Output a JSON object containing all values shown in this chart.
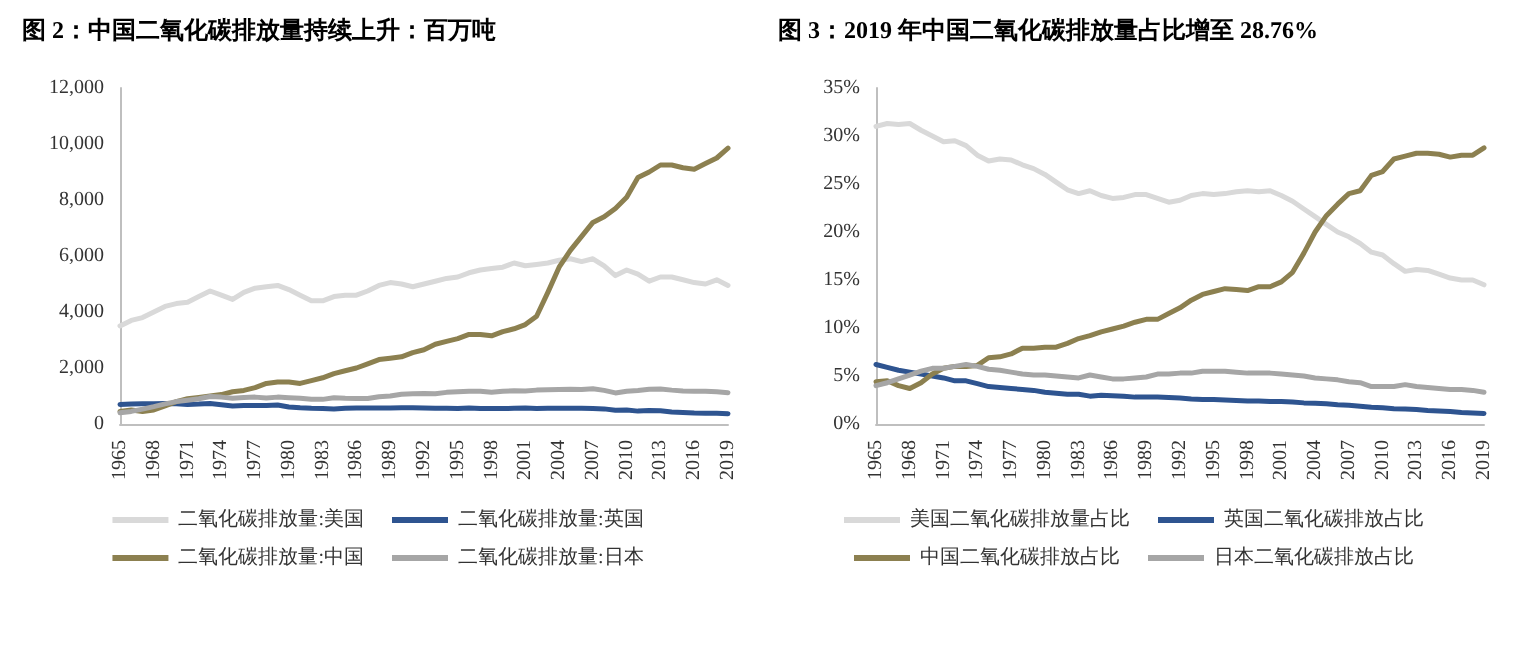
{
  "chart_data": [
    {
      "type": "line",
      "title": "图 2：中国二氧化碳排放量持续上升：百万吨",
      "categories": [
        "1965",
        null,
        null,
        "1968",
        null,
        null,
        "1971",
        null,
        null,
        "1974",
        null,
        null,
        "1977",
        null,
        null,
        "1980",
        null,
        null,
        "1983",
        null,
        null,
        "1986",
        null,
        null,
        "1989",
        null,
        null,
        "1992",
        null,
        null,
        "1995",
        null,
        null,
        "1998",
        null,
        null,
        "2001",
        null,
        null,
        "2004",
        null,
        null,
        "2007",
        null,
        null,
        "2010",
        null,
        null,
        "2013",
        null,
        null,
        "2016",
        null,
        null,
        "2019"
      ],
      "series": [
        {
          "name": "二氧化碳排放量:美国",
          "color": "#d9d9d9",
          "values": [
            3500,
            3700,
            3800,
            4000,
            4200,
            4300,
            4350,
            4550,
            4750,
            4600,
            4450,
            4700,
            4850,
            4900,
            4950,
            4800,
            4600,
            4400,
            4400,
            4550,
            4600,
            4600,
            4750,
            4950,
            5050,
            5000,
            4900,
            5000,
            5100,
            5200,
            5250,
            5400,
            5500,
            5550,
            5600,
            5750,
            5650,
            5700,
            5750,
            5850,
            5900,
            5800,
            5900,
            5650,
            5300,
            5500,
            5350,
            5100,
            5250,
            5250,
            5150,
            5050,
            5000,
            5150,
            4950
          ]
        },
        {
          "name": "二氧化碳排放量:英国",
          "color": "#2e5490",
          "values": [
            700,
            710,
            720,
            720,
            730,
            720,
            700,
            710,
            730,
            690,
            640,
            660,
            660,
            660,
            680,
            610,
            580,
            560,
            550,
            540,
            560,
            570,
            570,
            570,
            570,
            580,
            580,
            570,
            560,
            560,
            550,
            570,
            550,
            550,
            550,
            560,
            570,
            550,
            560,
            560,
            560,
            560,
            550,
            540,
            490,
            500,
            460,
            480,
            470,
            430,
            410,
            390,
            380,
            380,
            370
          ]
        },
        {
          "name": "二氧化碳排放量:中国",
          "color": "#8c8050",
          "values": [
            450,
            500,
            450,
            500,
            650,
            800,
            900,
            950,
            1000,
            1050,
            1150,
            1200,
            1300,
            1450,
            1500,
            1500,
            1450,
            1550,
            1650,
            1800,
            1900,
            2000,
            2150,
            2300,
            2350,
            2400,
            2550,
            2650,
            2850,
            2950,
            3050,
            3200,
            3200,
            3150,
            3300,
            3400,
            3550,
            3850,
            4700,
            5600,
            6200,
            6700,
            7200,
            7400,
            7700,
            8100,
            8800,
            9000,
            9250,
            9250,
            9150,
            9100,
            9300,
            9500,
            9850
          ]
        },
        {
          "name": "二氧化碳排放量:日本",
          "color": "#a6a6a6",
          "values": [
            400,
            450,
            530,
            620,
            720,
            800,
            850,
            900,
            980,
            960,
            920,
            950,
            960,
            930,
            960,
            940,
            920,
            880,
            880,
            940,
            920,
            910,
            910,
            970,
            1000,
            1060,
            1080,
            1090,
            1080,
            1130,
            1150,
            1170,
            1170,
            1130,
            1170,
            1190,
            1180,
            1210,
            1220,
            1230,
            1240,
            1230,
            1260,
            1200,
            1110,
            1170,
            1200,
            1240,
            1250,
            1210,
            1180,
            1170,
            1170,
            1150,
            1120
          ]
        }
      ],
      "ylim": [
        0,
        12000
      ],
      "yticks": [
        0,
        {
          "value": 2000,
          "label": "2,000"
        },
        {
          "value": 4000,
          "label": "4,000"
        },
        {
          "value": 6000,
          "label": "6,000"
        },
        {
          "value": 8000,
          "label": "8,000"
        },
        {
          "value": 10000,
          "label": "10,000"
        },
        {
          "value": 12000,
          "label": "12,000"
        }
      ],
      "grid": false,
      "legend": "bottom",
      "marker": "none",
      "line_style": "solid"
    },
    {
      "type": "line",
      "title": "图 3：2019 年中国二氧化碳排放量占比增至 28.76%",
      "categories": [
        "1965",
        null,
        null,
        "1968",
        null,
        null,
        "1971",
        null,
        null,
        "1974",
        null,
        null,
        "1977",
        null,
        null,
        "1980",
        null,
        null,
        "1983",
        null,
        null,
        "1986",
        null,
        null,
        "1989",
        null,
        null,
        "1992",
        null,
        null,
        "1995",
        null,
        null,
        "1998",
        null,
        null,
        "2001",
        null,
        null,
        "2004",
        null,
        null,
        "2007",
        null,
        null,
        "2010",
        null,
        null,
        "2013",
        null,
        null,
        "2016",
        null,
        null,
        "2019"
      ],
      "series": [
        {
          "name": "美国二氧化碳排放量占比",
          "color": "#d9d9d9",
          "values": [
            31,
            31.3,
            31.2,
            31.3,
            30.6,
            30,
            29.4,
            29.5,
            29,
            28,
            27.4,
            27.6,
            27.5,
            27,
            26.6,
            26,
            25.2,
            24.4,
            24,
            24.3,
            23.8,
            23.5,
            23.6,
            23.9,
            23.9,
            23.5,
            23.1,
            23.3,
            23.8,
            24,
            23.9,
            24,
            24.2,
            24.3,
            24.2,
            24.3,
            23.8,
            23.2,
            22.4,
            21.6,
            20.8,
            20,
            19.5,
            18.8,
            17.9,
            17.6,
            16.7,
            15.9,
            16.1,
            16,
            15.6,
            15.2,
            15,
            15,
            14.5
          ]
        },
        {
          "name": "英国二氧化碳排放占比",
          "color": "#2e5490",
          "values": [
            6.2,
            5.9,
            5.6,
            5.4,
            5.2,
            5,
            4.8,
            4.5,
            4.5,
            4.2,
            3.9,
            3.8,
            3.7,
            3.6,
            3.5,
            3.3,
            3.2,
            3.1,
            3.1,
            2.9,
            3,
            2.95,
            2.9,
            2.8,
            2.8,
            2.8,
            2.75,
            2.7,
            2.6,
            2.55,
            2.55,
            2.5,
            2.45,
            2.4,
            2.4,
            2.35,
            2.35,
            2.3,
            2.2,
            2.15,
            2.1,
            2,
            1.95,
            1.85,
            1.75,
            1.7,
            1.6,
            1.55,
            1.5,
            1.4,
            1.35,
            1.3,
            1.2,
            1.15,
            1.1
          ]
        },
        {
          "name": "中国二氧化碳排放占比",
          "color": "#8c8050",
          "values": [
            4.4,
            4.5,
            4,
            3.7,
            4.3,
            5.2,
            5.8,
            6,
            6,
            6.1,
            6.9,
            7,
            7.3,
            7.9,
            7.9,
            8,
            8,
            8.4,
            8.9,
            9.2,
            9.6,
            9.9,
            10.2,
            10.6,
            10.9,
            10.9,
            11.5,
            12.1,
            12.9,
            13.5,
            13.8,
            14.1,
            14,
            13.9,
            14.3,
            14.3,
            14.8,
            15.8,
            17.8,
            20,
            21.7,
            22.9,
            24,
            24.3,
            25.9,
            26.3,
            27.6,
            27.9,
            28.2,
            28.2,
            28.1,
            27.8,
            28,
            28,
            28.76
          ]
        },
        {
          "name": "日本二氧化碳排放占比",
          "color": "#a6a6a6",
          "values": [
            4,
            4.3,
            4.7,
            5.1,
            5.5,
            5.8,
            5.8,
            6,
            6.2,
            6,
            5.7,
            5.6,
            5.4,
            5.2,
            5.1,
            5.1,
            5,
            4.9,
            4.8,
            5.1,
            4.9,
            4.7,
            4.7,
            4.8,
            4.9,
            5.2,
            5.2,
            5.3,
            5.3,
            5.5,
            5.5,
            5.5,
            5.4,
            5.3,
            5.3,
            5.3,
            5.2,
            5.1,
            5,
            4.8,
            4.7,
            4.6,
            4.4,
            4.3,
            3.9,
            3.9,
            3.9,
            4.1,
            3.9,
            3.8,
            3.7,
            3.6,
            3.6,
            3.5,
            3.3
          ]
        }
      ],
      "ylim": [
        0,
        35
      ],
      "yticks": [
        {
          "value": 0,
          "label": "0%"
        },
        {
          "value": 5,
          "label": "5%"
        },
        {
          "value": 10,
          "label": "10%"
        },
        {
          "value": 15,
          "label": "15%"
        },
        {
          "value": 20,
          "label": "20%"
        },
        {
          "value": 25,
          "label": "25%"
        },
        {
          "value": 30,
          "label": "30%"
        },
        {
          "value": 35,
          "label": "35%"
        }
      ],
      "grid": false,
      "legend": "bottom",
      "marker": "none",
      "line_style": "solid"
    }
  ]
}
